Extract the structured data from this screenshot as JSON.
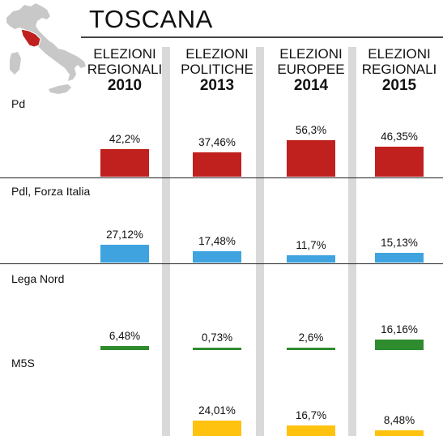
{
  "header": {
    "title": "TOSCANA"
  },
  "map": {
    "base_color": "#c8c8c8",
    "highlight_color": "#c0201e"
  },
  "columns": [
    {
      "line1": "ELEZIONI",
      "line2": "REGIONALI",
      "year": "2010"
    },
    {
      "line1": "ELEZIONI",
      "line2": "POLITICHE",
      "year": "2013"
    },
    {
      "line1": "ELEZIONI",
      "line2": "EUROPEE",
      "year": "2014"
    },
    {
      "line1": "ELEZIONI",
      "line2": "REGIONALI",
      "year": "2015"
    }
  ],
  "chart_data": {
    "type": "bar",
    "categories": [
      "ELEZIONI REGIONALI 2010",
      "ELEZIONI POLITICHE 2013",
      "ELEZIONI EUROPEE 2014",
      "ELEZIONI REGIONALI 2015"
    ],
    "series": [
      {
        "name": "Pd",
        "color": "#c0201e",
        "values": [
          42.2,
          37.46,
          56.3,
          46.35
        ],
        "labels": [
          "42,2%",
          "37,46%",
          "56,3%",
          "46,35%"
        ]
      },
      {
        "name": "Pdl, Forza Italia",
        "color": "#3fa3e0",
        "values": [
          27.12,
          17.48,
          11.7,
          15.13
        ],
        "labels": [
          "27,12%",
          "17,48%",
          "11,7%",
          "15,13%"
        ]
      },
      {
        "name": "Lega Nord",
        "color": "#2e8b2e",
        "values": [
          6.48,
          0.73,
          2.6,
          16.16
        ],
        "labels": [
          "6,48%",
          "0,73%",
          "2,6%",
          "16,16%"
        ]
      },
      {
        "name": "M5S",
        "color": "#ffc20e",
        "values": [
          null,
          24.01,
          16.7,
          8.48
        ],
        "labels": [
          "",
          "24,01%",
          "16,7%",
          "8,48%"
        ]
      }
    ]
  }
}
